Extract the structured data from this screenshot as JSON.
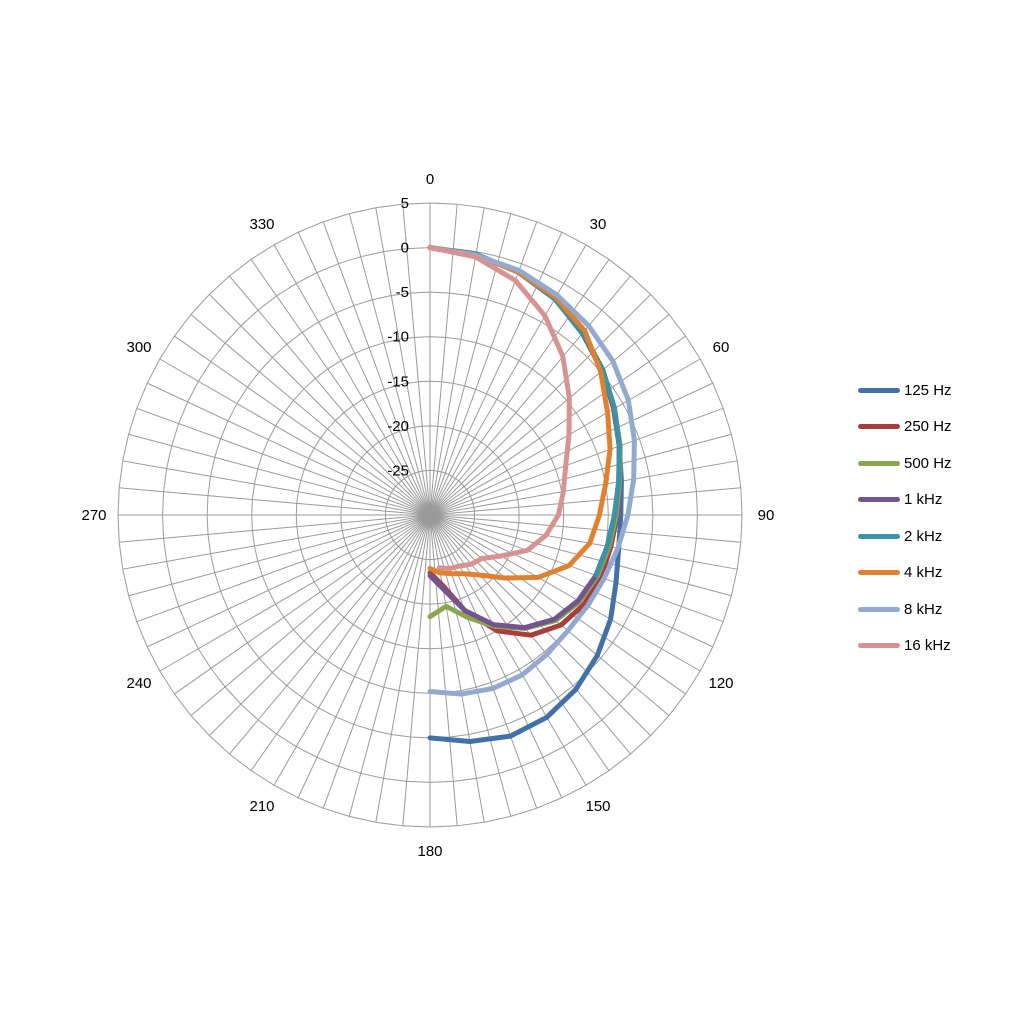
{
  "chart_data": {
    "type": "radar",
    "angular_labels": [
      "0",
      "30",
      "60",
      "90",
      "120",
      "150",
      "180",
      "210",
      "240",
      "270",
      "300",
      "330"
    ],
    "radial_tick_labels": [
      "5",
      "0",
      "-5",
      "-10",
      "-15",
      "-20",
      "-25"
    ],
    "rlim": [
      -30,
      5
    ],
    "angle_step_deg": 5,
    "grid": true,
    "legend_position": "right",
    "series": [
      {
        "name": "125 Hz",
        "color": "#4470A8",
        "points": [
          [
            0,
            0
          ],
          [
            10,
            -0.3
          ],
          [
            20,
            -1
          ],
          [
            30,
            -2
          ],
          [
            40,
            -3.4
          ],
          [
            50,
            -4.8
          ],
          [
            60,
            -6.2
          ],
          [
            70,
            -7.4
          ],
          [
            80,
            -8.2
          ],
          [
            90,
            -8.6
          ],
          [
            100,
            -8.5
          ],
          [
            110,
            -7.8
          ],
          [
            120,
            -6.6
          ],
          [
            130,
            -5.5
          ],
          [
            140,
            -4.5
          ],
          [
            150,
            -3.8
          ],
          [
            160,
            -3.6
          ],
          [
            170,
            -4.2
          ],
          [
            180,
            -5
          ]
        ]
      },
      {
        "name": "250 Hz",
        "color": "#A7403D",
        "points": [
          [
            0,
            0
          ],
          [
            10,
            -0.3
          ],
          [
            20,
            -1
          ],
          [
            30,
            -2
          ],
          [
            40,
            -3.3
          ],
          [
            50,
            -4.7
          ],
          [
            60,
            -6.2
          ],
          [
            70,
            -7.4
          ],
          [
            80,
            -8.4
          ],
          [
            90,
            -9
          ],
          [
            100,
            -9.4
          ],
          [
            110,
            -9.6
          ],
          [
            120,
            -10
          ],
          [
            130,
            -10.8
          ],
          [
            140,
            -12.4
          ],
          [
            150,
            -15
          ],
          [
            160,
            -18.6
          ],
          [
            170,
            -22
          ],
          [
            180,
            -23.5
          ]
        ]
      },
      {
        "name": "500 Hz",
        "color": "#8AA64E",
        "points": [
          [
            0,
            0
          ],
          [
            10,
            -0.3
          ],
          [
            20,
            -1
          ],
          [
            30,
            -2
          ],
          [
            40,
            -3.3
          ],
          [
            50,
            -4.7
          ],
          [
            60,
            -6.1
          ],
          [
            70,
            -7.3
          ],
          [
            80,
            -8.4
          ],
          [
            90,
            -9.1
          ],
          [
            100,
            -9.6
          ],
          [
            110,
            -10
          ],
          [
            120,
            -10.6
          ],
          [
            130,
            -11.6
          ],
          [
            140,
            -13.4
          ],
          [
            150,
            -15.6
          ],
          [
            160,
            -17.8
          ],
          [
            170,
            -19.6
          ],
          [
            180,
            -18.6
          ]
        ]
      },
      {
        "name": "1 kHz",
        "color": "#72558F",
        "points": [
          [
            0,
            0
          ],
          [
            10,
            -0.3
          ],
          [
            20,
            -1
          ],
          [
            30,
            -2
          ],
          [
            40,
            -3.3
          ],
          [
            50,
            -4.7
          ],
          [
            60,
            -6.1
          ],
          [
            70,
            -7.4
          ],
          [
            80,
            -8.5
          ],
          [
            90,
            -9.3
          ],
          [
            100,
            -9.8
          ],
          [
            110,
            -10.2
          ],
          [
            120,
            -10.8
          ],
          [
            130,
            -11.8
          ],
          [
            140,
            -13.5
          ],
          [
            150,
            -15.8
          ],
          [
            160,
            -18.6
          ],
          [
            170,
            -21.6
          ],
          [
            180,
            -23.2
          ]
        ]
      },
      {
        "name": "2 kHz",
        "color": "#3B93A8",
        "points": [
          [
            0,
            0
          ],
          [
            10,
            -0.3
          ],
          [
            20,
            -1
          ],
          [
            30,
            -2
          ],
          [
            40,
            -3.3
          ],
          [
            50,
            -4.7
          ],
          [
            60,
            -6.1
          ],
          [
            70,
            -7.4
          ],
          [
            80,
            -8.5
          ],
          [
            90,
            -9.3
          ],
          [
            100,
            -9.8
          ],
          [
            110,
            -10.2
          ]
        ]
      },
      {
        "name": "4 kHz",
        "color": "#E0812F",
        "points": [
          [
            0,
            0
          ],
          [
            10,
            -0.4
          ],
          [
            20,
            -1
          ],
          [
            30,
            -1.8
          ],
          [
            40,
            -3
          ],
          [
            50,
            -5
          ],
          [
            60,
            -7
          ],
          [
            70,
            -8.5
          ],
          [
            80,
            -10
          ],
          [
            90,
            -11
          ],
          [
            100,
            -11.8
          ],
          [
            110,
            -13.4
          ],
          [
            120,
            -16
          ],
          [
            130,
            -19
          ],
          [
            140,
            -21.2
          ],
          [
            150,
            -22.4
          ],
          [
            160,
            -23
          ],
          [
            170,
            -23.4
          ],
          [
            180,
            -24
          ]
        ]
      },
      {
        "name": "8 kHz",
        "color": "#93A9D0",
        "points": [
          [
            0,
            0
          ],
          [
            10,
            -0.4
          ],
          [
            20,
            -0.8
          ],
          [
            30,
            -1.5
          ],
          [
            40,
            -2.3
          ],
          [
            50,
            -3.2
          ],
          [
            60,
            -4.3
          ],
          [
            70,
            -5.6
          ],
          [
            80,
            -6.8
          ],
          [
            90,
            -7.8
          ],
          [
            100,
            -8.6
          ],
          [
            110,
            -9.2
          ],
          [
            120,
            -9.6
          ],
          [
            130,
            -9.8
          ],
          [
            140,
            -9.6
          ],
          [
            150,
            -9.3
          ],
          [
            160,
            -9.3
          ],
          [
            170,
            -9.6
          ],
          [
            180,
            -10.2
          ]
        ]
      },
      {
        "name": "16 kHz",
        "color": "#D69391",
        "points": [
          [
            0,
            0
          ],
          [
            10,
            -0.6
          ],
          [
            20,
            -2
          ],
          [
            30,
            -4.2
          ],
          [
            40,
            -6.8
          ],
          [
            50,
            -9.6
          ],
          [
            60,
            -12
          ],
          [
            70,
            -13.8
          ],
          [
            80,
            -14.8
          ],
          [
            90,
            -15.6
          ],
          [
            100,
            -16.8
          ],
          [
            110,
            -18.4
          ],
          [
            120,
            -20.8
          ],
          [
            130,
            -22.4
          ],
          [
            140,
            -22.8
          ],
          [
            150,
            -23.4
          ],
          [
            160,
            -23.6
          ],
          [
            170,
            -24
          ]
        ]
      }
    ]
  }
}
